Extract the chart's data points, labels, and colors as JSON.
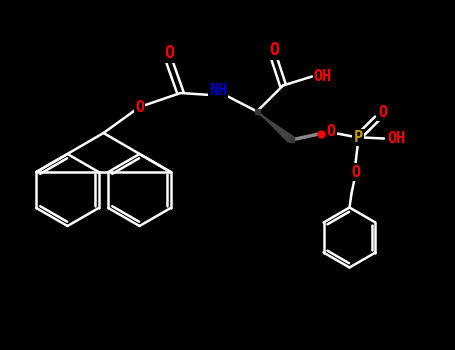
{
  "background_color": "#000000",
  "bond_color": "#ffffff",
  "bond_color_dark": "#555555",
  "atom_colors": {
    "O": "#ff0000",
    "N": "#0000cd",
    "P": "#c8a000",
    "C": "#ffffff",
    "H": "#ffffff"
  },
  "figsize": [
    4.55,
    3.5
  ],
  "dpi": 100,
  "xlim": [
    0,
    9.1
  ],
  "ylim": [
    0,
    7.0
  ]
}
